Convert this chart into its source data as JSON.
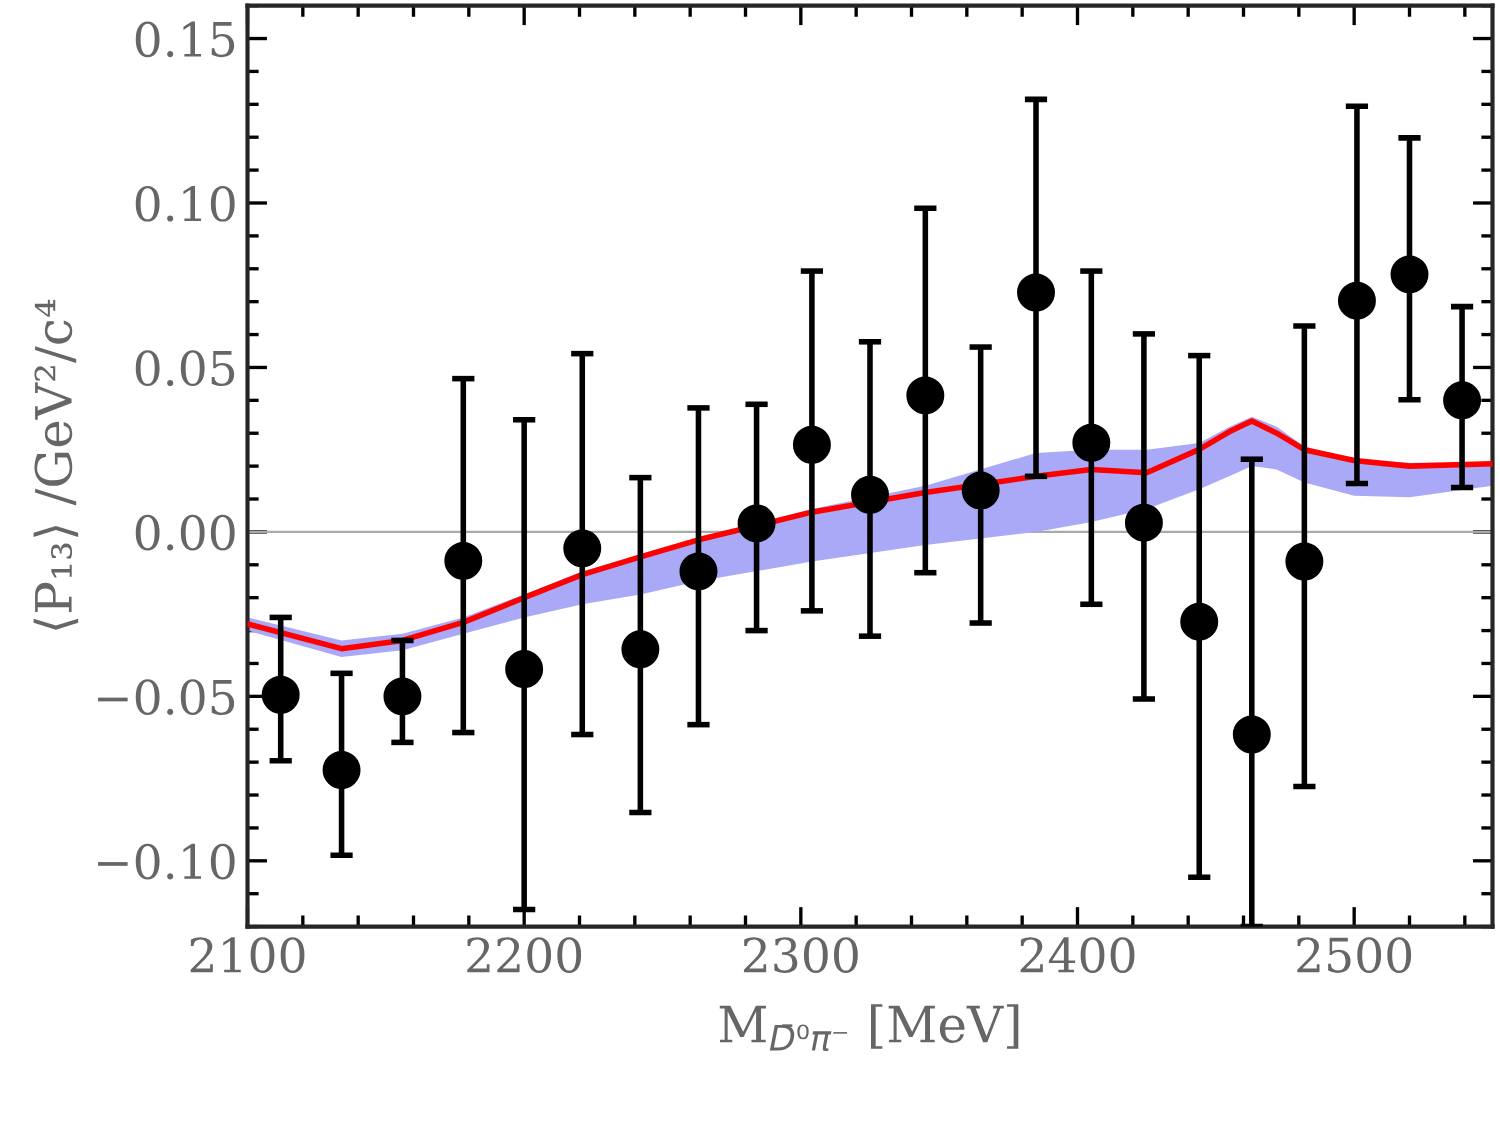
{
  "chart_data": {
    "type": "scatter",
    "xlabel": "M$_{D̄⁰π⁻}$ [MeV]",
    "ylabel": "⟨P₁₃⟩ /GeV²/c⁴",
    "xlim": [
      2100,
      2550
    ],
    "ylim": [
      -0.12,
      0.16
    ],
    "xticks": [
      2100,
      2200,
      2300,
      2400,
      2500
    ],
    "yticks": [
      {
        "value": -0.1,
        "label": "−0.10"
      },
      {
        "value": -0.05,
        "label": "−0.05"
      },
      {
        "value": 0,
        "label": "0.00"
      },
      {
        "value": 0.05,
        "label": "0.05"
      },
      {
        "value": 0.1,
        "label": "0.10"
      },
      {
        "value": 0.15,
        "label": "0.15"
      }
    ],
    "grid": false,
    "legend": false,
    "ref_lines": [
      {
        "axis": "y",
        "value": 0,
        "color": "#aaaaaa"
      }
    ],
    "series": [
      {
        "type": "line",
        "color": "#ff0000",
        "line_style": "solid",
        "marker": "none",
        "x": [
          2100,
          2134,
          2156,
          2178,
          2200,
          2221,
          2242,
          2263,
          2304,
          2345,
          2385,
          2405,
          2425,
          2444,
          2455,
          2463,
          2472,
          2482,
          2500,
          2520,
          2550
        ],
        "values": [
          -0.028,
          -0.0355,
          -0.033,
          -0.0275,
          -0.02,
          -0.013,
          -0.0076,
          -0.0024,
          0.006,
          0.012,
          0.0169,
          0.019,
          0.018,
          0.0251,
          0.0305,
          0.0337,
          0.03,
          0.025,
          0.0217,
          0.02,
          0.0207
        ],
        "lower": [
          -0.03,
          -0.038,
          -0.036,
          -0.031,
          -0.026,
          -0.022,
          -0.019,
          -0.015,
          -0.009,
          -0.004,
          0.0,
          0.003,
          0.007,
          0.013,
          0.017,
          0.02,
          0.019,
          0.015,
          0.011,
          0.0105,
          0.014
        ],
        "upper": [
          -0.026,
          -0.033,
          -0.031,
          -0.026,
          -0.019,
          -0.012,
          -0.007,
          -0.002,
          0.007,
          0.014,
          0.024,
          0.025,
          0.025,
          0.027,
          0.032,
          0.035,
          0.032,
          0.026,
          0.022,
          0.021,
          0.021
        ]
      },
      {
        "color": "#000000",
        "marker": "circle",
        "x": [
          2112,
          2134,
          2156,
          2178,
          2200,
          2221,
          2242,
          2263,
          2284,
          2304,
          2325,
          2345,
          2365,
          2385,
          2405,
          2424,
          2444,
          2463,
          2482,
          2501,
          2520,
          2539
        ],
        "values": [
          -0.0495,
          -0.0724,
          -0.05,
          -0.0088,
          -0.0417,
          -0.005,
          -0.0357,
          -0.012,
          0.0026,
          0.0265,
          0.0113,
          0.0415,
          0.0126,
          0.0728,
          0.0271,
          0.0028,
          -0.0273,
          -0.0616,
          -0.009,
          0.0703,
          0.0783,
          0.04
        ],
        "errors": [
          [
            -0.0696,
            -0.026
          ],
          [
            -0.0983,
            -0.043
          ],
          [
            -0.064,
            -0.033
          ],
          [
            -0.061,
            0.0466
          ],
          [
            -0.1148,
            0.0341
          ],
          [
            -0.0616,
            0.0542
          ],
          [
            -0.0853,
            0.0165
          ],
          [
            -0.0586,
            0.0377
          ],
          [
            -0.03,
            0.0388
          ],
          [
            -0.024,
            0.0793
          ],
          [
            -0.0317,
            0.0578
          ],
          [
            -0.0124,
            0.0984
          ],
          [
            -0.0277,
            0.0562
          ],
          [
            0.0169,
            0.1315
          ],
          [
            -0.022,
            0.0793
          ],
          [
            -0.0508,
            0.0602
          ],
          [
            -0.105,
            0.0536
          ],
          [
            -0.12,
            0.0221
          ],
          [
            -0.0774,
            0.0626
          ],
          [
            0.0147,
            0.1294
          ],
          [
            0.0402,
            0.1198
          ],
          [
            0.0135,
            0.0685
          ]
        ]
      }
    ]
  }
}
